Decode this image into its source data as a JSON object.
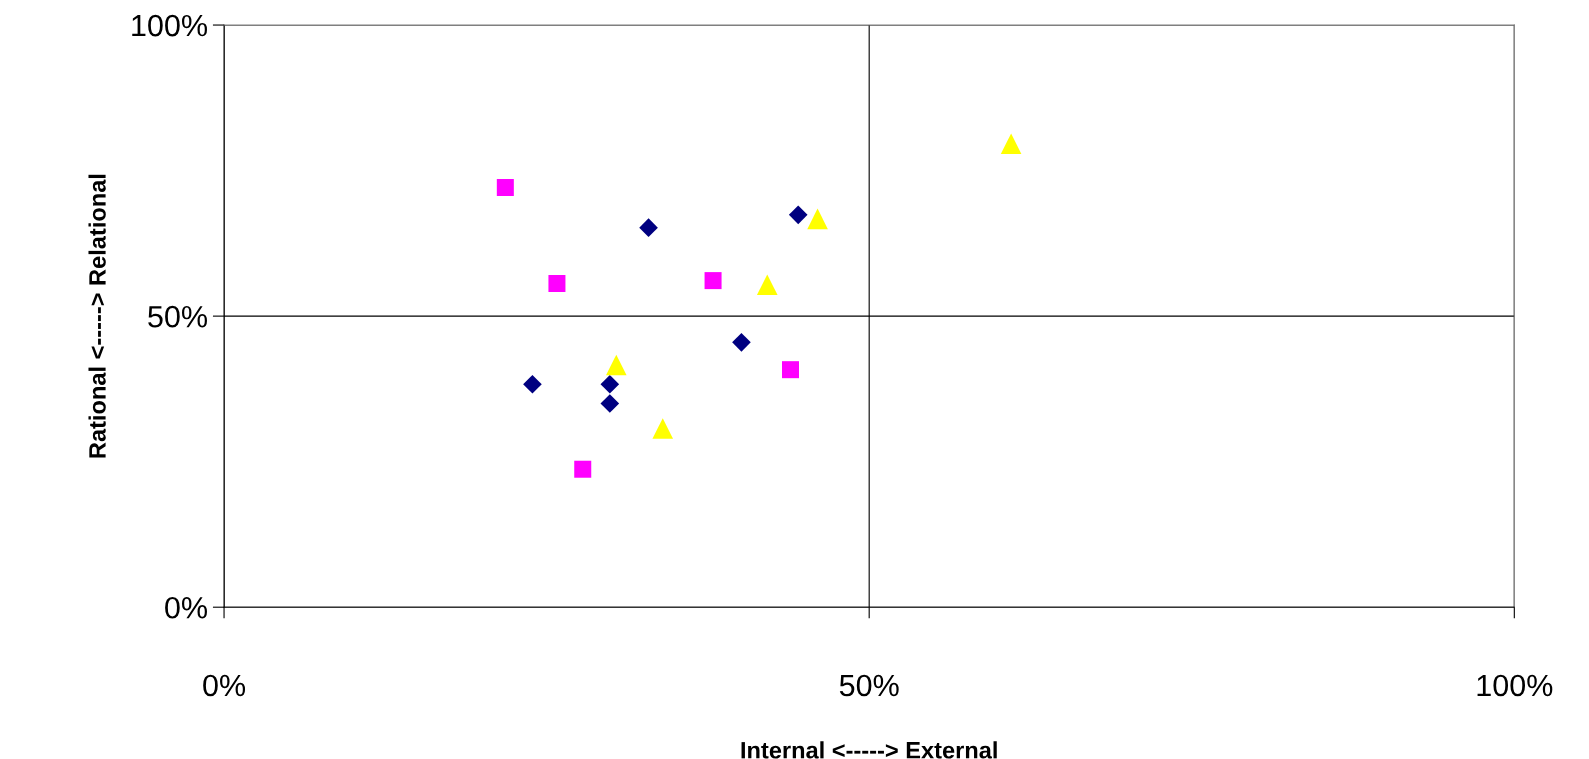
{
  "chart_data": {
    "type": "scatter",
    "xlabel": "Internal <-----> External",
    "ylabel": "Rational <-----> Relational",
    "xlim": [
      0,
      100
    ],
    "ylim": [
      0,
      100
    ],
    "xticks": [
      {
        "value": 0,
        "label": "0%"
      },
      {
        "value": 50,
        "label": "50%"
      },
      {
        "value": 100,
        "label": "100%"
      }
    ],
    "yticks": [
      {
        "value": 0,
        "label": "0%"
      },
      {
        "value": 50,
        "label": "50%"
      },
      {
        "value": 100,
        "label": "100%"
      }
    ],
    "grid": true,
    "series": [
      {
        "color": "#000080",
        "marker": "diamond",
        "x": [
          23.9,
          32.9,
          44.5,
          40.1,
          29.9,
          29.9
        ],
        "values": [
          38.3,
          65.2,
          67.4,
          45.5,
          38.3,
          35.0
        ]
      },
      {
        "color": "#ff00ff",
        "marker": "square",
        "x": [
          21.8,
          25.8,
          37.9,
          43.9,
          27.8
        ],
        "values": [
          72.1,
          55.6,
          56.1,
          40.8,
          23.7
        ]
      },
      {
        "color": "#ffff00",
        "marker": "triangle",
        "x": [
          61.0,
          46.0,
          42.1,
          30.4,
          34.0
        ],
        "values": [
          79.6,
          66.7,
          55.4,
          41.6,
          30.7
        ]
      }
    ]
  }
}
